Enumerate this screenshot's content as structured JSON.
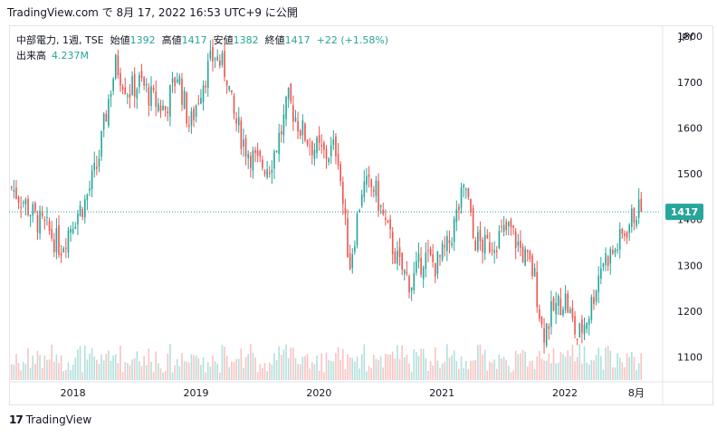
{
  "header": {
    "caption": "TradingView.com で 8月 17, 2022 16:53 UTC+9 に公開"
  },
  "legend": {
    "symbol": "中部電力, 1週, TSE",
    "open_label": "始値",
    "open_value": "1392",
    "high_label": "高値",
    "high_value": "1417",
    "low_label": "安値",
    "low_value": "1382",
    "close_label": "終値",
    "close_value": "1417",
    "change": "+22 (+1.58%)",
    "volume_label": "出来高",
    "volume_value": "4.237M"
  },
  "footer": {
    "logo_mark": "17",
    "brand": "TradingView"
  },
  "chart_data": {
    "type": "candlestick",
    "currency_label": "JPY",
    "last_price_label": "1417",
    "y_ticks": [
      1100,
      1200,
      1300,
      1400,
      1500,
      1600,
      1700,
      1800
    ],
    "ylim": [
      1050,
      1820
    ],
    "x_ticks": [
      {
        "label": "2018",
        "x": 2018.0
      },
      {
        "label": "2019",
        "x": 2019.0
      },
      {
        "label": "2020",
        "x": 2020.0
      },
      {
        "label": "2021",
        "x": 2021.0
      },
      {
        "label": "2022",
        "x": 2022.0
      },
      {
        "label": "8月",
        "x": 2022.58
      }
    ],
    "xlim": [
      2017.48,
      2022.78
    ],
    "price_path": [
      [
        2017.5,
        1470
      ],
      [
        2017.6,
        1440
      ],
      [
        2017.7,
        1400
      ],
      [
        2017.8,
        1375
      ],
      [
        2017.9,
        1340
      ],
      [
        2018.0,
        1400
      ],
      [
        2018.1,
        1440
      ],
      [
        2018.2,
        1520
      ],
      [
        2018.3,
        1680
      ],
      [
        2018.35,
        1740
      ],
      [
        2018.45,
        1680
      ],
      [
        2018.55,
        1700
      ],
      [
        2018.65,
        1660
      ],
      [
        2018.75,
        1640
      ],
      [
        2018.85,
        1720
      ],
      [
        2018.95,
        1600
      ],
      [
        2019.05,
        1700
      ],
      [
        2019.15,
        1760
      ],
      [
        2019.25,
        1720
      ],
      [
        2019.3,
        1630
      ],
      [
        2019.4,
        1560
      ],
      [
        2019.5,
        1520
      ],
      [
        2019.6,
        1520
      ],
      [
        2019.7,
        1600
      ],
      [
        2019.75,
        1660
      ],
      [
        2019.85,
        1600
      ],
      [
        2019.95,
        1560
      ],
      [
        2020.05,
        1540
      ],
      [
        2020.15,
        1560
      ],
      [
        2020.2,
        1420
      ],
      [
        2020.25,
        1300
      ],
      [
        2020.35,
        1470
      ],
      [
        2020.45,
        1470
      ],
      [
        2020.55,
        1380
      ],
      [
        2020.65,
        1300
      ],
      [
        2020.75,
        1260
      ],
      [
        2020.85,
        1320
      ],
      [
        2020.95,
        1300
      ],
      [
        2021.05,
        1340
      ],
      [
        2021.15,
        1440
      ],
      [
        2021.2,
        1470
      ],
      [
        2021.25,
        1360
      ],
      [
        2021.35,
        1340
      ],
      [
        2021.45,
        1360
      ],
      [
        2021.55,
        1380
      ],
      [
        2021.65,
        1330
      ],
      [
        2021.75,
        1280
      ],
      [
        2021.82,
        1150
      ],
      [
        2021.9,
        1200
      ],
      [
        2022.0,
        1230
      ],
      [
        2022.1,
        1140
      ],
      [
        2022.2,
        1200
      ],
      [
        2022.3,
        1310
      ],
      [
        2022.4,
        1330
      ],
      [
        2022.5,
        1380
      ],
      [
        2022.58,
        1420
      ],
      [
        2022.62,
        1417
      ]
    ],
    "last_close": 1417
  }
}
